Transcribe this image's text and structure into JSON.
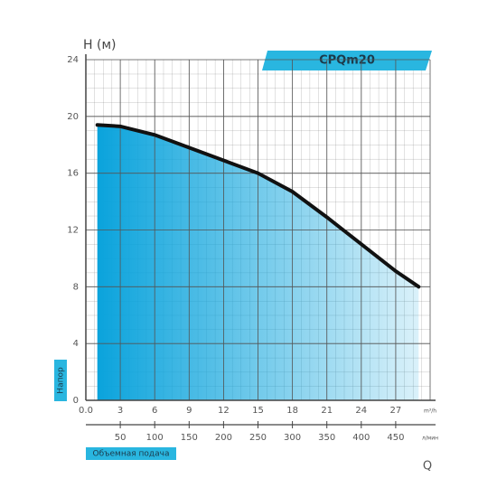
{
  "chart_data": {
    "type": "line",
    "title": "CPQm20",
    "y_label": "H (м)",
    "y_axis_tag": "Напор",
    "x_axis_tag": "Объемная подача",
    "x_symbol": "Q",
    "x_unit": "m³/h",
    "x2_unit": "л/мин",
    "x": [
      1,
      3,
      6,
      9,
      12,
      15,
      18,
      21,
      24,
      27,
      29
    ],
    "series": [
      {
        "color": "#111111",
        "fill": "#1aa7dc",
        "values": [
          19.4,
          19.3,
          18.7,
          17.8,
          16.9,
          16.0,
          14.7,
          12.9,
          11.0,
          9.1,
          8.0
        ]
      }
    ],
    "xlim": [
      0,
      30
    ],
    "xticks": [
      {
        "value": 0,
        "label": "0.0"
      },
      3,
      6,
      9,
      12,
      15,
      18,
      21,
      24,
      27
    ],
    "x2lim": [
      0,
      500
    ],
    "x2ticks": [
      50,
      100,
      150,
      200,
      250,
      300,
      350,
      400,
      450
    ],
    "ylim": [
      0,
      24
    ],
    "yticks": [
      0,
      4,
      8,
      12,
      16,
      20,
      24
    ],
    "grid": true
  }
}
